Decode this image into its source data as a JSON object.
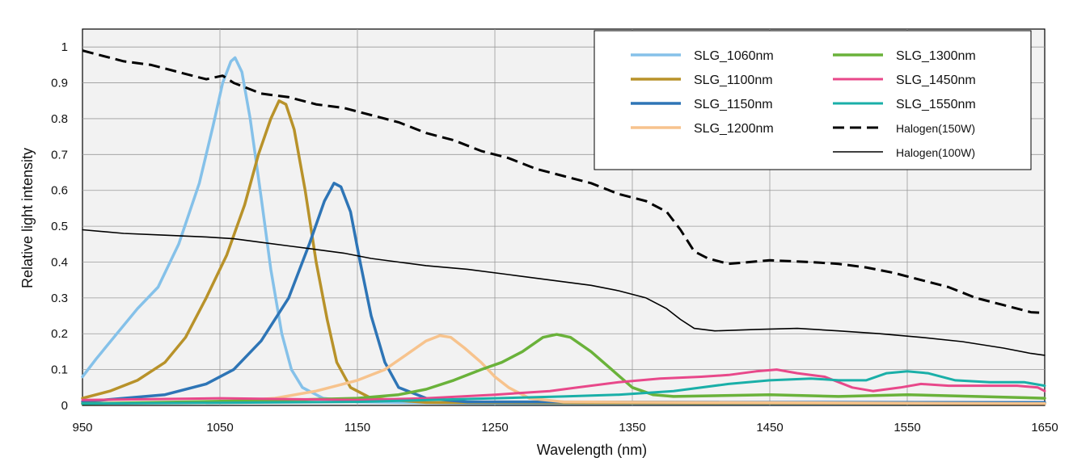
{
  "chart_data": {
    "type": "line",
    "title": "",
    "xlabel": "Wavelength (nm)",
    "ylabel": "Relative light intensity",
    "xlim": [
      950,
      1650
    ],
    "ylim": [
      0,
      1.05
    ],
    "grid": true,
    "legend_position": "top-right",
    "x_ticks": [
      "950",
      "1050",
      "1150",
      "1250",
      "1350",
      "1450",
      "1550",
      "1650"
    ],
    "y_ticks": [
      "0",
      "0.1",
      "0.2",
      "0.3",
      "0.4",
      "0.5",
      "0.6",
      "0.7",
      "0.8",
      "0.9",
      "1"
    ],
    "series": [
      {
        "name": "SLG_1060nm",
        "color": "#85c1e9",
        "style": "solid",
        "width": 3.5,
        "points": [
          [
            950,
            0.08
          ],
          [
            960,
            0.13
          ],
          [
            975,
            0.2
          ],
          [
            990,
            0.27
          ],
          [
            1005,
            0.33
          ],
          [
            1020,
            0.45
          ],
          [
            1035,
            0.62
          ],
          [
            1045,
            0.78
          ],
          [
            1052,
            0.9
          ],
          [
            1058,
            0.96
          ],
          [
            1061,
            0.97
          ],
          [
            1066,
            0.93
          ],
          [
            1072,
            0.8
          ],
          [
            1080,
            0.58
          ],
          [
            1087,
            0.38
          ],
          [
            1095,
            0.2
          ],
          [
            1102,
            0.1
          ],
          [
            1110,
            0.05
          ],
          [
            1125,
            0.02
          ],
          [
            1150,
            0.01
          ],
          [
            1250,
            0.005
          ],
          [
            1650,
            0.005
          ]
        ]
      },
      {
        "name": "SLG_1100nm",
        "color": "#b8922a",
        "style": "solid",
        "width": 3.5,
        "points": [
          [
            950,
            0.02
          ],
          [
            970,
            0.04
          ],
          [
            990,
            0.07
          ],
          [
            1010,
            0.12
          ],
          [
            1025,
            0.19
          ],
          [
            1040,
            0.3
          ],
          [
            1055,
            0.42
          ],
          [
            1068,
            0.56
          ],
          [
            1078,
            0.7
          ],
          [
            1087,
            0.8
          ],
          [
            1093,
            0.85
          ],
          [
            1098,
            0.84
          ],
          [
            1104,
            0.77
          ],
          [
            1112,
            0.6
          ],
          [
            1120,
            0.4
          ],
          [
            1128,
            0.24
          ],
          [
            1135,
            0.12
          ],
          [
            1145,
            0.05
          ],
          [
            1160,
            0.02
          ],
          [
            1200,
            0.008
          ],
          [
            1650,
            0.005
          ]
        ]
      },
      {
        "name": "SLG_1150nm",
        "color": "#2e75b6",
        "style": "solid",
        "width": 3.5,
        "points": [
          [
            950,
            0.01
          ],
          [
            980,
            0.02
          ],
          [
            1010,
            0.03
          ],
          [
            1040,
            0.06
          ],
          [
            1060,
            0.1
          ],
          [
            1080,
            0.18
          ],
          [
            1100,
            0.3
          ],
          [
            1115,
            0.45
          ],
          [
            1126,
            0.57
          ],
          [
            1133,
            0.62
          ],
          [
            1138,
            0.61
          ],
          [
            1145,
            0.54
          ],
          [
            1152,
            0.4
          ],
          [
            1160,
            0.25
          ],
          [
            1170,
            0.12
          ],
          [
            1180,
            0.05
          ],
          [
            1200,
            0.02
          ],
          [
            1230,
            0.01
          ],
          [
            1650,
            0.008
          ]
        ]
      },
      {
        "name": "SLG_1200nm",
        "color": "#f7c38d",
        "style": "solid",
        "width": 3.5,
        "points": [
          [
            950,
            0.005
          ],
          [
            1050,
            0.01
          ],
          [
            1090,
            0.02
          ],
          [
            1120,
            0.04
          ],
          [
            1150,
            0.07
          ],
          [
            1170,
            0.1
          ],
          [
            1185,
            0.14
          ],
          [
            1200,
            0.18
          ],
          [
            1210,
            0.195
          ],
          [
            1218,
            0.19
          ],
          [
            1228,
            0.16
          ],
          [
            1240,
            0.12
          ],
          [
            1250,
            0.08
          ],
          [
            1260,
            0.05
          ],
          [
            1275,
            0.02
          ],
          [
            1300,
            0.01
          ],
          [
            1650,
            0.005
          ]
        ]
      },
      {
        "name": "SLG_1300nm",
        "color": "#6ab23a",
        "style": "solid",
        "width": 3.5,
        "points": [
          [
            950,
            0.005
          ],
          [
            1100,
            0.015
          ],
          [
            1150,
            0.02
          ],
          [
            1180,
            0.03
          ],
          [
            1200,
            0.045
          ],
          [
            1220,
            0.07
          ],
          [
            1240,
            0.1
          ],
          [
            1255,
            0.12
          ],
          [
            1270,
            0.15
          ],
          [
            1285,
            0.19
          ],
          [
            1295,
            0.198
          ],
          [
            1305,
            0.19
          ],
          [
            1320,
            0.15
          ],
          [
            1335,
            0.1
          ],
          [
            1350,
            0.05
          ],
          [
            1365,
            0.03
          ],
          [
            1380,
            0.025
          ],
          [
            1450,
            0.03
          ],
          [
            1500,
            0.025
          ],
          [
            1550,
            0.03
          ],
          [
            1600,
            0.025
          ],
          [
            1650,
            0.02
          ]
        ]
      },
      {
        "name": "SLG_1450nm",
        "color": "#e8488a",
        "style": "solid",
        "width": 3,
        "points": [
          [
            950,
            0.015
          ],
          [
            1050,
            0.02
          ],
          [
            1150,
            0.015
          ],
          [
            1200,
            0.02
          ],
          [
            1250,
            0.03
          ],
          [
            1290,
            0.04
          ],
          [
            1310,
            0.05
          ],
          [
            1340,
            0.065
          ],
          [
            1370,
            0.075
          ],
          [
            1400,
            0.08
          ],
          [
            1420,
            0.085
          ],
          [
            1440,
            0.095
          ],
          [
            1455,
            0.1
          ],
          [
            1470,
            0.09
          ],
          [
            1490,
            0.08
          ],
          [
            1510,
            0.05
          ],
          [
            1525,
            0.04
          ],
          [
            1545,
            0.05
          ],
          [
            1560,
            0.06
          ],
          [
            1580,
            0.055
          ],
          [
            1600,
            0.055
          ],
          [
            1630,
            0.055
          ],
          [
            1645,
            0.05
          ],
          [
            1650,
            0.04
          ]
        ]
      },
      {
        "name": "SLG_1550nm",
        "color": "#1aafa8",
        "style": "solid",
        "width": 3,
        "points": [
          [
            950,
            0.005
          ],
          [
            1150,
            0.01
          ],
          [
            1250,
            0.02
          ],
          [
            1300,
            0.025
          ],
          [
            1340,
            0.03
          ],
          [
            1380,
            0.04
          ],
          [
            1420,
            0.06
          ],
          [
            1450,
            0.07
          ],
          [
            1480,
            0.075
          ],
          [
            1500,
            0.07
          ],
          [
            1520,
            0.07
          ],
          [
            1535,
            0.09
          ],
          [
            1550,
            0.095
          ],
          [
            1565,
            0.09
          ],
          [
            1585,
            0.07
          ],
          [
            1610,
            0.065
          ],
          [
            1635,
            0.065
          ],
          [
            1650,
            0.055
          ]
        ]
      },
      {
        "name": "Halogen(150W)",
        "color": "#000000",
        "style": "dashed",
        "width": 3,
        "points": [
          [
            950,
            0.99
          ],
          [
            960,
            0.98
          ],
          [
            980,
            0.96
          ],
          [
            1000,
            0.95
          ],
          [
            1020,
            0.93
          ],
          [
            1040,
            0.91
          ],
          [
            1052,
            0.92
          ],
          [
            1060,
            0.9
          ],
          [
            1080,
            0.87
          ],
          [
            1100,
            0.86
          ],
          [
            1120,
            0.84
          ],
          [
            1140,
            0.83
          ],
          [
            1160,
            0.81
          ],
          [
            1180,
            0.79
          ],
          [
            1200,
            0.76
          ],
          [
            1220,
            0.74
          ],
          [
            1240,
            0.71
          ],
          [
            1260,
            0.69
          ],
          [
            1280,
            0.66
          ],
          [
            1300,
            0.64
          ],
          [
            1320,
            0.62
          ],
          [
            1340,
            0.59
          ],
          [
            1360,
            0.57
          ],
          [
            1375,
            0.54
          ],
          [
            1385,
            0.49
          ],
          [
            1395,
            0.43
          ],
          [
            1405,
            0.41
          ],
          [
            1420,
            0.395
          ],
          [
            1450,
            0.405
          ],
          [
            1480,
            0.4
          ],
          [
            1500,
            0.395
          ],
          [
            1520,
            0.385
          ],
          [
            1540,
            0.37
          ],
          [
            1560,
            0.35
          ],
          [
            1580,
            0.33
          ],
          [
            1600,
            0.3
          ],
          [
            1620,
            0.28
          ],
          [
            1640,
            0.26
          ],
          [
            1650,
            0.258
          ]
        ]
      },
      {
        "name": "Halogen(100W)",
        "color": "#000000",
        "style": "solid",
        "width": 1.6,
        "points": [
          [
            950,
            0.49
          ],
          [
            980,
            0.48
          ],
          [
            1010,
            0.475
          ],
          [
            1040,
            0.47
          ],
          [
            1060,
            0.465
          ],
          [
            1080,
            0.455
          ],
          [
            1100,
            0.445
          ],
          [
            1120,
            0.435
          ],
          [
            1140,
            0.425
          ],
          [
            1160,
            0.41
          ],
          [
            1180,
            0.4
          ],
          [
            1200,
            0.39
          ],
          [
            1230,
            0.38
          ],
          [
            1260,
            0.365
          ],
          [
            1290,
            0.35
          ],
          [
            1320,
            0.335
          ],
          [
            1340,
            0.32
          ],
          [
            1360,
            0.3
          ],
          [
            1375,
            0.27
          ],
          [
            1385,
            0.24
          ],
          [
            1395,
            0.215
          ],
          [
            1410,
            0.208
          ],
          [
            1440,
            0.212
          ],
          [
            1470,
            0.215
          ],
          [
            1500,
            0.208
          ],
          [
            1530,
            0.2
          ],
          [
            1560,
            0.19
          ],
          [
            1590,
            0.178
          ],
          [
            1620,
            0.16
          ],
          [
            1640,
            0.145
          ],
          [
            1650,
            0.14
          ]
        ]
      }
    ]
  }
}
